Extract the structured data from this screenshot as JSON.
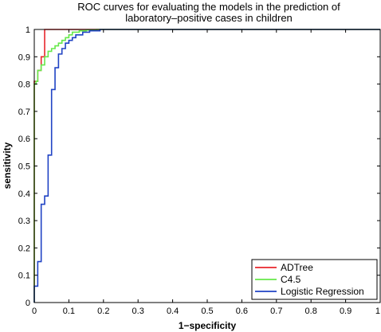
{
  "chart_data": {
    "type": "line",
    "title": "ROC curves for evaluating the models in the prediction of",
    "subtitle": "laboratory–positive cases in children",
    "xlabel": "1−specificity",
    "ylabel": "sensitivity",
    "xlim": [
      0,
      1
    ],
    "ylim": [
      0,
      1
    ],
    "xticks": [
      "0",
      "0.1",
      "0.2",
      "0.3",
      "0.4",
      "0.5",
      "0.6",
      "0.7",
      "0.8",
      "0.9",
      "1"
    ],
    "yticks": [
      "0",
      "0.1",
      "0.2",
      "0.3",
      "0.4",
      "0.5",
      "0.6",
      "0.7",
      "0.8",
      "0.9",
      "1"
    ],
    "grid": false,
    "legend_position": "bottom-right",
    "series": [
      {
        "name": "ADTree",
        "color": "#e8262c",
        "x": [
          0,
          0,
          0,
          0.01,
          0.01,
          0.02,
          0.02,
          0.03,
          0.03,
          0.1,
          0.1,
          1
        ],
        "y": [
          0,
          0.8,
          0.81,
          0.81,
          0.85,
          0.85,
          0.9,
          0.9,
          1,
          1,
          1,
          1
        ]
      },
      {
        "name": "C4.5",
        "color": "#66e84a",
        "x": [
          0,
          0,
          0.005,
          0.005,
          0.01,
          0.01,
          0.02,
          0.02,
          0.03,
          0.03,
          0.04,
          0.04,
          0.05,
          0.05,
          0.06,
          0.06,
          0.07,
          0.07,
          0.08,
          0.08,
          0.09,
          0.09,
          0.1,
          0.1,
          0.11,
          0.11,
          0.13,
          0.13,
          0.15,
          0.15,
          0.18,
          0.18,
          1
        ],
        "y": [
          0,
          0.8,
          0.8,
          0.81,
          0.81,
          0.85,
          0.85,
          0.87,
          0.87,
          0.9,
          0.9,
          0.92,
          0.92,
          0.93,
          0.93,
          0.94,
          0.94,
          0.95,
          0.95,
          0.96,
          0.96,
          0.97,
          0.97,
          0.98,
          0.98,
          0.99,
          0.99,
          0.995,
          0.995,
          0.998,
          0.998,
          1,
          1
        ]
      },
      {
        "name": "Logistic Regression",
        "color": "#2043c4",
        "x": [
          0,
          0,
          0.01,
          0.01,
          0.02,
          0.02,
          0.03,
          0.03,
          0.04,
          0.04,
          0.05,
          0.05,
          0.06,
          0.06,
          0.07,
          0.07,
          0.08,
          0.08,
          0.09,
          0.09,
          0.1,
          0.1,
          0.11,
          0.11,
          0.12,
          0.12,
          0.14,
          0.14,
          0.16,
          0.16,
          0.19,
          0.19,
          1
        ],
        "y": [
          0,
          0.06,
          0.06,
          0.15,
          0.15,
          0.36,
          0.36,
          0.39,
          0.39,
          0.54,
          0.54,
          0.78,
          0.78,
          0.86,
          0.86,
          0.91,
          0.91,
          0.93,
          0.93,
          0.95,
          0.95,
          0.96,
          0.96,
          0.97,
          0.97,
          0.98,
          0.98,
          0.99,
          0.99,
          0.995,
          0.995,
          1,
          1
        ]
      }
    ]
  }
}
